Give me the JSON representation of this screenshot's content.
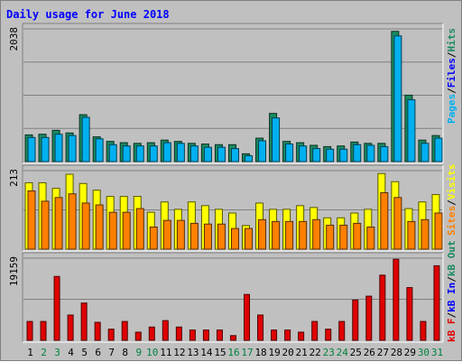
{
  "title": "Daily usage for June 2018",
  "colors": {
    "hits": "#1a8a5f",
    "files": "#00b0f0",
    "pages": "#00b0f0",
    "visits": "#ffff00",
    "sites": "#ff8000",
    "kbin": "#0000ff",
    "kbout": "#1a8a5f",
    "kbf": "#e00000",
    "title": "#0000ff",
    "axis_weekday": "#000000",
    "axis_weekend": "#008040"
  },
  "chart_data": [
    {
      "type": "bar",
      "panel": "hits-files-pages",
      "ymax_label": "2038",
      "ymax": 2038,
      "legend": [
        {
          "label": "Pages",
          "color": "#00b0f0"
        },
        {
          "label": "Files",
          "color": "#0000ff"
        },
        {
          "label": "Hits",
          "color": "#1a8a5f"
        }
      ],
      "series": [
        {
          "name": "Hits",
          "values": [
            410,
            420,
            480,
            440,
            720,
            380,
            310,
            290,
            280,
            290,
            330,
            310,
            280,
            270,
            260,
            260,
            120,
            360,
            740,
            310,
            290,
            250,
            230,
            240,
            300,
            280,
            280,
            2000,
            1020,
            330,
            400
          ]
        },
        {
          "name": "Files",
          "values": [
            370,
            370,
            420,
            400,
            680,
            350,
            260,
            240,
            240,
            240,
            290,
            280,
            240,
            220,
            220,
            200,
            90,
            320,
            670,
            270,
            240,
            200,
            190,
            190,
            260,
            250,
            230,
            1930,
            950,
            280,
            360
          ]
        }
      ],
      "categories": [
        "1",
        "2",
        "3",
        "4",
        "5",
        "6",
        "7",
        "8",
        "9",
        "10",
        "11",
        "12",
        "13",
        "14",
        "15",
        "16",
        "17",
        "18",
        "19",
        "20",
        "21",
        "22",
        "23",
        "24",
        "25",
        "26",
        "27",
        "28",
        "29",
        "30",
        "31"
      ]
    },
    {
      "type": "bar",
      "panel": "visits-sites",
      "ymax_label": "213",
      "ymax": 213,
      "legend": [
        {
          "label": "Sites",
          "color": "#ff8000"
        },
        {
          "label": "Visits",
          "color": "#ffff00"
        }
      ],
      "series": [
        {
          "name": "Visits",
          "values": [
            180,
            180,
            165,
            203,
            178,
            160,
            143,
            143,
            143,
            100,
            128,
            108,
            128,
            118,
            108,
            98,
            64,
            125,
            108,
            108,
            118,
            113,
            85,
            85,
            98,
            108,
            205,
            183,
            110,
            128,
            148
          ]
        },
        {
          "name": "Sites",
          "values": [
            158,
            130,
            140,
            150,
            125,
            120,
            100,
            100,
            110,
            60,
            78,
            78,
            70,
            68,
            68,
            56,
            56,
            80,
            75,
            75,
            75,
            80,
            65,
            65,
            70,
            60,
            153,
            140,
            75,
            80,
            98
          ]
        }
      ],
      "categories": [
        "1",
        "2",
        "3",
        "4",
        "5",
        "6",
        "7",
        "8",
        "9",
        "10",
        "11",
        "12",
        "13",
        "14",
        "15",
        "16",
        "17",
        "18",
        "19",
        "20",
        "21",
        "22",
        "23",
        "24",
        "25",
        "26",
        "27",
        "28",
        "29",
        "30",
        "31"
      ]
    },
    {
      "type": "bar",
      "panel": "kb",
      "ymax_label": "19159",
      "ymax": 19159,
      "legend": [
        {
          "label": "kB F",
          "color": "#e00000"
        },
        {
          "label": "kB In",
          "color": "#0000ff"
        },
        {
          "label": "kB Out",
          "color": "#1a8a5f"
        }
      ],
      "series": [
        {
          "name": "kB F",
          "values": [
            4400,
            4400,
            14900,
            5900,
            8700,
            4200,
            2600,
            4400,
            1900,
            3100,
            4600,
            3100,
            2400,
            2400,
            2400,
            1100,
            10700,
            5900,
            2400,
            2400,
            1900,
            4400,
            2600,
            4400,
            9400,
            10300,
            15200,
            18900,
            12300,
            4400,
            17400
          ]
        }
      ],
      "categories": [
        "1",
        "2",
        "3",
        "4",
        "5",
        "6",
        "7",
        "8",
        "9",
        "10",
        "11",
        "12",
        "13",
        "14",
        "15",
        "16",
        "17",
        "18",
        "19",
        "20",
        "21",
        "22",
        "23",
        "24",
        "25",
        "26",
        "27",
        "28",
        "29",
        "30",
        "31"
      ]
    }
  ],
  "x_axis": {
    "labels": [
      "1",
      "2",
      "3",
      "4",
      "5",
      "6",
      "7",
      "8",
      "9",
      "10",
      "11",
      "12",
      "13",
      "14",
      "15",
      "16",
      "17",
      "18",
      "19",
      "20",
      "21",
      "22",
      "23",
      "24",
      "25",
      "26",
      "27",
      "28",
      "29",
      "30",
      "31"
    ],
    "weekend_days": [
      "2",
      "3",
      "9",
      "10",
      "16",
      "17",
      "23",
      "24",
      "30",
      "31"
    ]
  }
}
